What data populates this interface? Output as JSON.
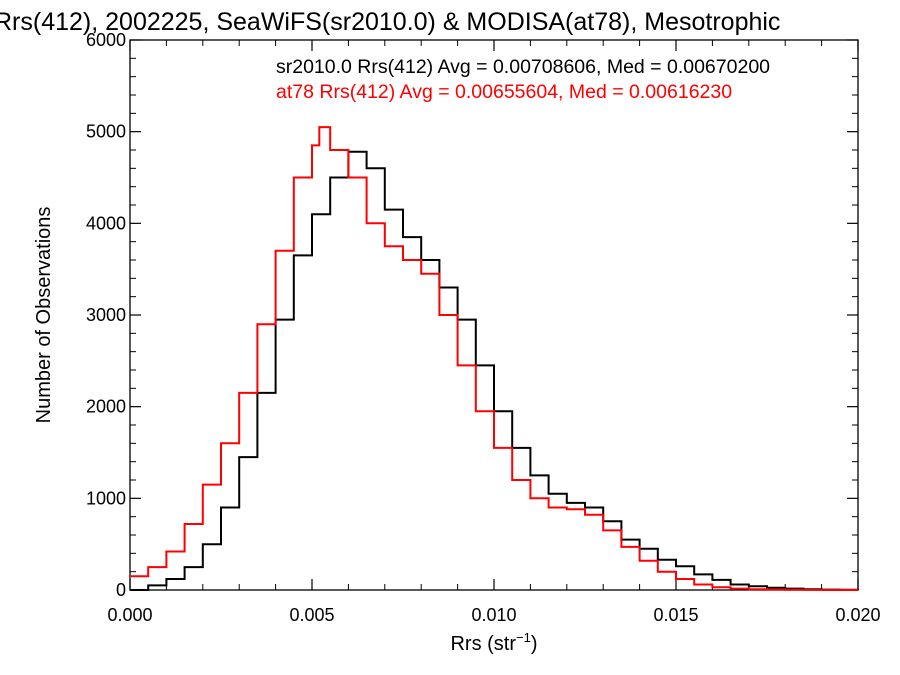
{
  "chart_data": {
    "type": "line",
    "title": "Rrs(412), 2002225, SeaWiFS(sr2010.0) & MODISA(at78), Mesotrophic",
    "xlabel_main": "Rrs (str",
    "xlabel_sup": "−1",
    "xlabel_close": ")",
    "ylabel": "Number of Observations",
    "xlim": [
      0.0,
      0.02
    ],
    "ylim": [
      0,
      6000
    ],
    "x_ticks": [
      "0.000",
      "0.005",
      "0.010",
      "0.015",
      "0.020"
    ],
    "y_ticks": [
      "0",
      "1000",
      "2000",
      "3000",
      "4000",
      "5000",
      "6000"
    ],
    "grid": false,
    "series": [
      {
        "name": "sr2010.0",
        "color": "#000000",
        "stats_text": "sr2010.0 Rrs(412) Avg = 0.00708606, Med = 0.00670200",
        "points": [
          [
            0.0,
            0
          ],
          [
            0.0005,
            50
          ],
          [
            0.001,
            120
          ],
          [
            0.0015,
            250
          ],
          [
            0.002,
            500
          ],
          [
            0.0025,
            900
          ],
          [
            0.003,
            1450
          ],
          [
            0.0035,
            2150
          ],
          [
            0.004,
            2950
          ],
          [
            0.0045,
            3650
          ],
          [
            0.005,
            4100
          ],
          [
            0.0055,
            4500
          ],
          [
            0.006,
            4780
          ],
          [
            0.0065,
            4600
          ],
          [
            0.007,
            4150
          ],
          [
            0.0075,
            3850
          ],
          [
            0.008,
            3600
          ],
          [
            0.0085,
            3300
          ],
          [
            0.009,
            2950
          ],
          [
            0.0095,
            2450
          ],
          [
            0.01,
            1950
          ],
          [
            0.0105,
            1550
          ],
          [
            0.011,
            1250
          ],
          [
            0.0115,
            1050
          ],
          [
            0.012,
            950
          ],
          [
            0.0125,
            900
          ],
          [
            0.013,
            750
          ],
          [
            0.0135,
            550
          ],
          [
            0.014,
            450
          ],
          [
            0.0145,
            330
          ],
          [
            0.015,
            260
          ],
          [
            0.0155,
            170
          ],
          [
            0.016,
            110
          ],
          [
            0.0165,
            60
          ],
          [
            0.017,
            40
          ],
          [
            0.0175,
            25
          ],
          [
            0.018,
            15
          ],
          [
            0.0185,
            8
          ],
          [
            0.019,
            4
          ],
          [
            0.0195,
            2
          ],
          [
            0.02,
            0
          ]
        ]
      },
      {
        "name": "at78",
        "color": "#ff0000",
        "stats_text": "at78 Rrs(412) Avg = 0.00655604, Med = 0.00616230",
        "points": [
          [
            0.0,
            150
          ],
          [
            0.0005,
            250
          ],
          [
            0.001,
            420
          ],
          [
            0.0015,
            720
          ],
          [
            0.002,
            1150
          ],
          [
            0.0025,
            1600
          ],
          [
            0.003,
            2150
          ],
          [
            0.0035,
            2900
          ],
          [
            0.004,
            3700
          ],
          [
            0.0045,
            4500
          ],
          [
            0.005,
            4850
          ],
          [
            0.0052,
            5050
          ],
          [
            0.0055,
            4800
          ],
          [
            0.006,
            4500
          ],
          [
            0.0065,
            4000
          ],
          [
            0.007,
            3750
          ],
          [
            0.0075,
            3600
          ],
          [
            0.008,
            3450
          ],
          [
            0.0085,
            3000
          ],
          [
            0.009,
            2450
          ],
          [
            0.0095,
            1950
          ],
          [
            0.01,
            1550
          ],
          [
            0.0105,
            1200
          ],
          [
            0.011,
            1000
          ],
          [
            0.0115,
            900
          ],
          [
            0.012,
            880
          ],
          [
            0.0125,
            820
          ],
          [
            0.013,
            650
          ],
          [
            0.0135,
            470
          ],
          [
            0.014,
            320
          ],
          [
            0.0145,
            200
          ],
          [
            0.015,
            120
          ],
          [
            0.0155,
            60
          ],
          [
            0.016,
            30
          ],
          [
            0.0165,
            15
          ],
          [
            0.017,
            8
          ],
          [
            0.0175,
            4
          ],
          [
            0.018,
            2
          ],
          [
            0.0185,
            1
          ],
          [
            0.019,
            0
          ],
          [
            0.02,
            0
          ]
        ]
      }
    ]
  }
}
